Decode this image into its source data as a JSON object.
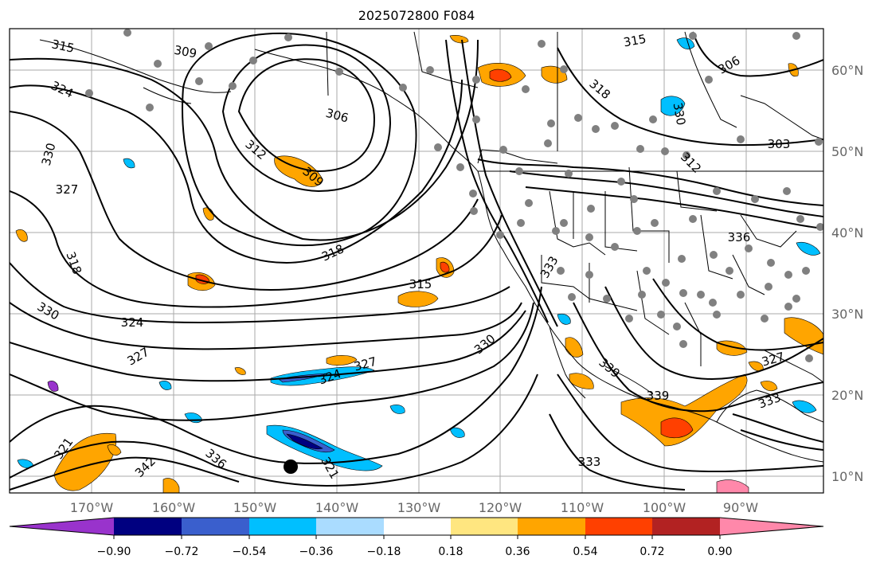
{
  "title": "2025072800 F084",
  "map": {
    "lon_labels": [
      "170°W",
      "160°W",
      "150°W",
      "140°W",
      "130°W",
      "120°W",
      "110°W",
      "100°W",
      "90°W"
    ],
    "lat_labels": [
      "60°N",
      "50°N",
      "40°N",
      "30°N",
      "20°N",
      "10°N"
    ],
    "contour_labels": [
      "315",
      "309",
      "324",
      "330",
      "327",
      "306",
      "312",
      "309",
      "318",
      "318",
      "315",
      "324",
      "327",
      "321",
      "342",
      "336",
      "321",
      "324",
      "327",
      "330",
      "315",
      "318",
      "330",
      "306",
      "303",
      "312",
      "336",
      "333",
      "330",
      "327",
      "339",
      "339",
      "333",
      "333"
    ]
  },
  "colorbar": {
    "labels": [
      "−0.90",
      "−0.72",
      "−0.54",
      "−0.36",
      "−0.18",
      "0.18",
      "0.36",
      "0.54",
      "0.72",
      "0.90"
    ],
    "colors": [
      "#9933cc",
      "#000080",
      "#3a5fcd",
      "#00bfff",
      "#aadcff",
      "#ffffff",
      "#ffe680",
      "#ffa500",
      "#ff4000",
      "#b22222",
      "#ff88aa"
    ]
  }
}
